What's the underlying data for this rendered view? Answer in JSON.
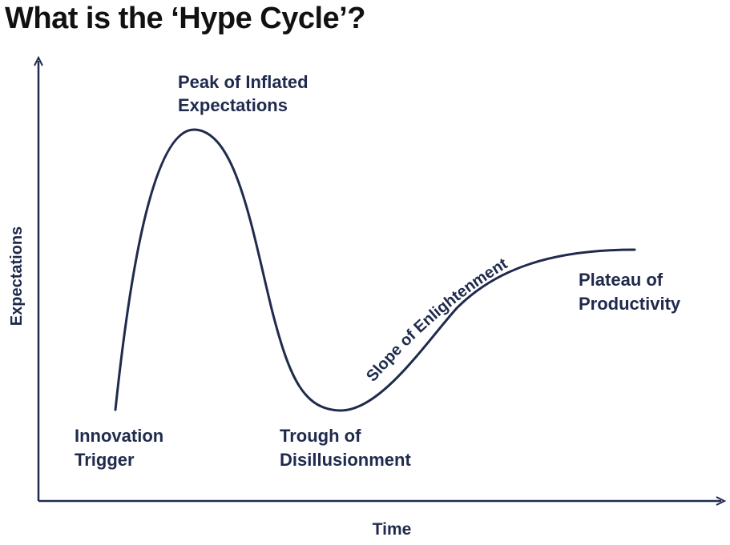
{
  "title": "What is the ‘Hype Cycle’?",
  "axes": {
    "y_label": "Expectations",
    "x_label": "Time"
  },
  "phases": {
    "innovation_trigger": [
      "Innovation",
      "Trigger"
    ],
    "peak": [
      "Peak of Inflated",
      "Expectations"
    ],
    "trough": [
      "Trough of",
      "Disillusionment"
    ],
    "slope": "Slope of Enlightenment",
    "plateau": [
      "Plateau of",
      "Productivity"
    ]
  },
  "colors": {
    "curve": "#1f2a4d",
    "axis": "#1f2a4d",
    "text": "#1f2a4d",
    "title": "#111111"
  }
}
